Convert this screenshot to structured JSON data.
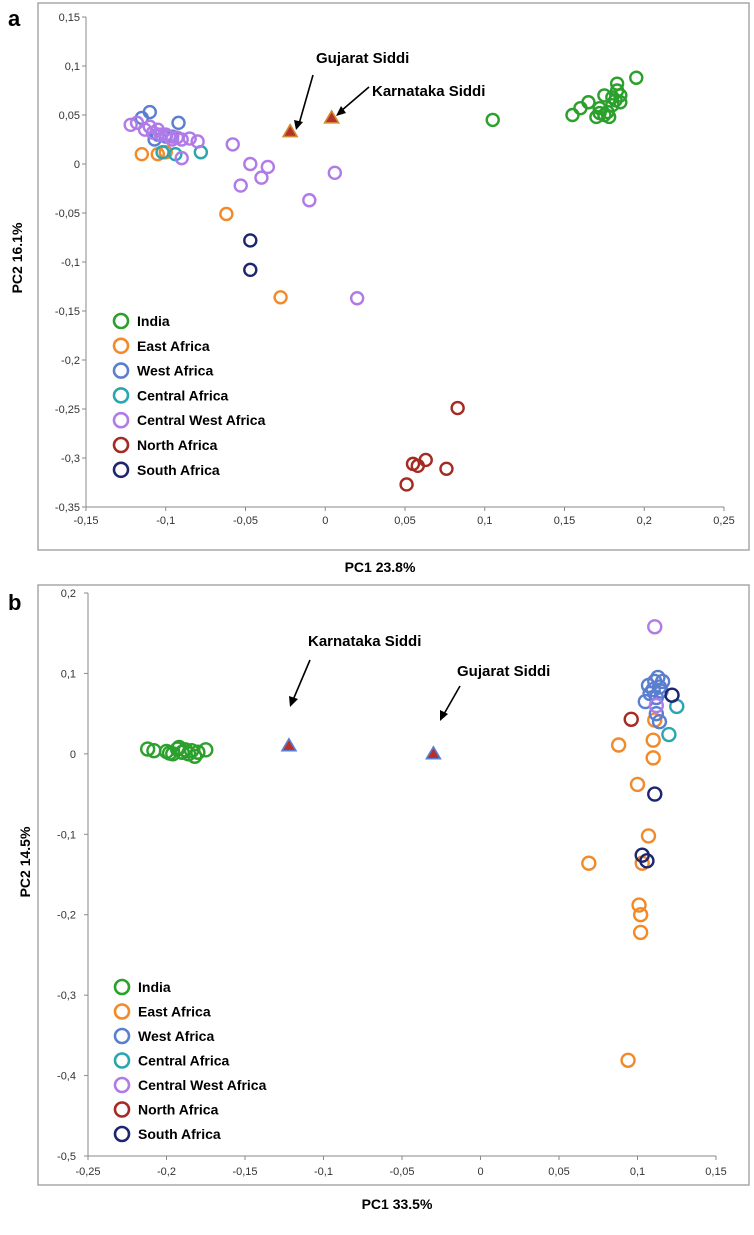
{
  "chart_data": [
    {
      "type": "scatter",
      "panel_label": "a",
      "xlabel": "PC1 23.8%",
      "ylabel": "PC2 16.1%",
      "xlim": [
        -0.15,
        0.25
      ],
      "ylim": [
        -0.35,
        0.15
      ],
      "xticks": [
        -0.15,
        -0.1,
        -0.05,
        0,
        0.05,
        0.1,
        0.15,
        0.2,
        0.25
      ],
      "yticks": [
        -0.35,
        -0.3,
        -0.25,
        -0.2,
        -0.15,
        -0.1,
        -0.05,
        0,
        0.05,
        0.1,
        0.15
      ],
      "xtick_labels": [
        "-0,15",
        "-0,1",
        "-0,05",
        "0",
        "0,05",
        "0,1",
        "0,15",
        "0,2",
        "0,25"
      ],
      "ytick_labels": [
        "-0,35",
        "-0,3",
        "-0,25",
        "-0,2",
        "-0,15",
        "-0,1",
        "-0,05",
        "0",
        "0,05",
        "0,1",
        "0,15"
      ],
      "grid": false,
      "legend_position": "bottom-left",
      "series": [
        {
          "name": "India",
          "color": "#2ca02c",
          "x": [
            0.105,
            0.155,
            0.16,
            0.165,
            0.17,
            0.172,
            0.175,
            0.178,
            0.18,
            0.182,
            0.183,
            0.185,
            0.175,
            0.18,
            0.183,
            0.185,
            0.195,
            0.172,
            0.177
          ],
          "y": [
            0.045,
            0.05,
            0.057,
            0.063,
            0.048,
            0.057,
            0.07,
            0.048,
            0.06,
            0.065,
            0.075,
            0.07,
            0.05,
            0.068,
            0.082,
            0.063,
            0.088,
            0.052,
            0.053
          ]
        },
        {
          "name": "East Africa",
          "color": "#f28a2a",
          "x": [
            -0.115,
            -0.105,
            -0.1,
            -0.062,
            -0.028
          ],
          "y": [
            0.01,
            0.01,
            0.012,
            -0.051,
            -0.136
          ]
        },
        {
          "name": "West Africa",
          "color": "#5b7fd0",
          "x": [
            -0.115,
            -0.11,
            -0.107,
            -0.105,
            -0.1,
            -0.096,
            -0.092
          ],
          "y": [
            0.047,
            0.053,
            0.025,
            0.03,
            0.028,
            0.028,
            0.042
          ]
        },
        {
          "name": "Central Africa",
          "color": "#2aa6b0",
          "x": [
            -0.102,
            -0.094,
            -0.078
          ],
          "y": [
            0.012,
            0.01,
            0.012
          ]
        },
        {
          "name": "Central West Africa",
          "color": "#b07ae8",
          "x": [
            -0.122,
            -0.118,
            -0.113,
            -0.11,
            -0.108,
            -0.105,
            -0.103,
            -0.1,
            -0.098,
            -0.096,
            -0.093,
            -0.09,
            -0.085,
            -0.08,
            -0.058,
            -0.053,
            -0.047,
            -0.04,
            -0.036,
            -0.01,
            0.006,
            0.02,
            -0.09
          ],
          "y": [
            0.04,
            0.042,
            0.035,
            0.038,
            0.032,
            0.035,
            0.03,
            0.03,
            0.028,
            0.025,
            0.027,
            0.025,
            0.026,
            0.023,
            0.02,
            -0.022,
            0.0,
            -0.014,
            -0.003,
            -0.037,
            -0.009,
            -0.137,
            0.006
          ]
        },
        {
          "name": "North Africa",
          "color": "#a52a22",
          "x": [
            0.051,
            0.055,
            0.058,
            0.063,
            0.076,
            0.083
          ],
          "y": [
            -0.327,
            -0.306,
            -0.308,
            -0.302,
            -0.311,
            -0.249
          ]
        },
        {
          "name": "South Africa",
          "color": "#1c2670",
          "x": [
            -0.047,
            -0.047
          ],
          "y": [
            -0.078,
            -0.108
          ]
        }
      ],
      "siddi": [
        {
          "label": "Gujarat Siddi",
          "x": -0.022,
          "y": 0.033
        },
        {
          "label": "Karnataka Siddi",
          "x": 0.004,
          "y": 0.047
        }
      ]
    },
    {
      "type": "scatter",
      "panel_label": "b",
      "xlabel": "PC1 33.5%",
      "ylabel": "PC2 14.5%",
      "xlim": [
        -0.25,
        0.15
      ],
      "ylim": [
        -0.5,
        0.2
      ],
      "xticks": [
        -0.25,
        -0.2,
        -0.15,
        -0.1,
        -0.05,
        0,
        0.05,
        0.1,
        0.15
      ],
      "yticks": [
        -0.5,
        -0.4,
        -0.3,
        -0.2,
        -0.1,
        0,
        0.1,
        0.2
      ],
      "xtick_labels": [
        "-0,25",
        "-0,2",
        "-0,15",
        "-0,1",
        "-0,05",
        "0",
        "0,05",
        "0,1",
        "0,15"
      ],
      "ytick_labels": [
        "-0,5",
        "-0,4",
        "-0,3",
        "-0,2",
        "-0,1",
        "0",
        "0,1",
        "0,2"
      ],
      "grid": false,
      "legend_position": "bottom-left",
      "series": [
        {
          "name": "India",
          "color": "#2ca02c",
          "x": [
            -0.212,
            -0.208,
            -0.2,
            -0.196,
            -0.193,
            -0.19,
            -0.188,
            -0.186,
            -0.184,
            -0.182,
            -0.18,
            -0.175,
            -0.192,
            -0.198
          ],
          "y": [
            0.006,
            0.004,
            0.003,
            0.0,
            0.006,
            0.002,
            0.005,
            0.0,
            0.004,
            -0.003,
            0.002,
            0.005,
            0.008,
            0.001
          ]
        },
        {
          "name": "East Africa",
          "color": "#f28a2a",
          "x": [
            0.069,
            0.088,
            0.094,
            0.1,
            0.101,
            0.102,
            0.102,
            0.103,
            0.107,
            0.11,
            0.11,
            0.111
          ],
          "y": [
            -0.136,
            0.011,
            -0.381,
            -0.038,
            -0.188,
            -0.2,
            -0.222,
            -0.136,
            -0.102,
            0.017,
            -0.005,
            0.042
          ]
        },
        {
          "name": "West Africa",
          "color": "#5b7fd0",
          "x": [
            0.105,
            0.107,
            0.108,
            0.11,
            0.111,
            0.112,
            0.113,
            0.114,
            0.115,
            0.116,
            0.112,
            0.114
          ],
          "y": [
            0.065,
            0.085,
            0.075,
            0.08,
            0.09,
            0.07,
            0.095,
            0.083,
            0.078,
            0.09,
            0.05,
            0.04
          ]
        },
        {
          "name": "Central Africa",
          "color": "#2aa6b0",
          "x": [
            0.12,
            0.125
          ],
          "y": [
            0.024,
            0.059
          ]
        },
        {
          "name": "Central West Africa",
          "color": "#b07ae8",
          "x": [
            0.111,
            0.112
          ],
          "y": [
            0.158,
            0.06
          ]
        },
        {
          "name": "North Africa",
          "color": "#a52a22",
          "x": [
            0.096
          ],
          "y": [
            0.043
          ]
        },
        {
          "name": "South Africa",
          "color": "#1c2670",
          "x": [
            0.103,
            0.106,
            0.111,
            0.122
          ],
          "y": [
            -0.126,
            -0.133,
            -0.05,
            0.073
          ]
        }
      ],
      "siddi": [
        {
          "label": "Karnataka Siddi",
          "x": -0.122,
          "y": 0.01
        },
        {
          "label": "Gujarat Siddi",
          "x": -0.03,
          "y": 0.0
        }
      ]
    }
  ],
  "siddi_style": {
    "fill": "#b5312a",
    "stroke": "#5b7fd0"
  }
}
